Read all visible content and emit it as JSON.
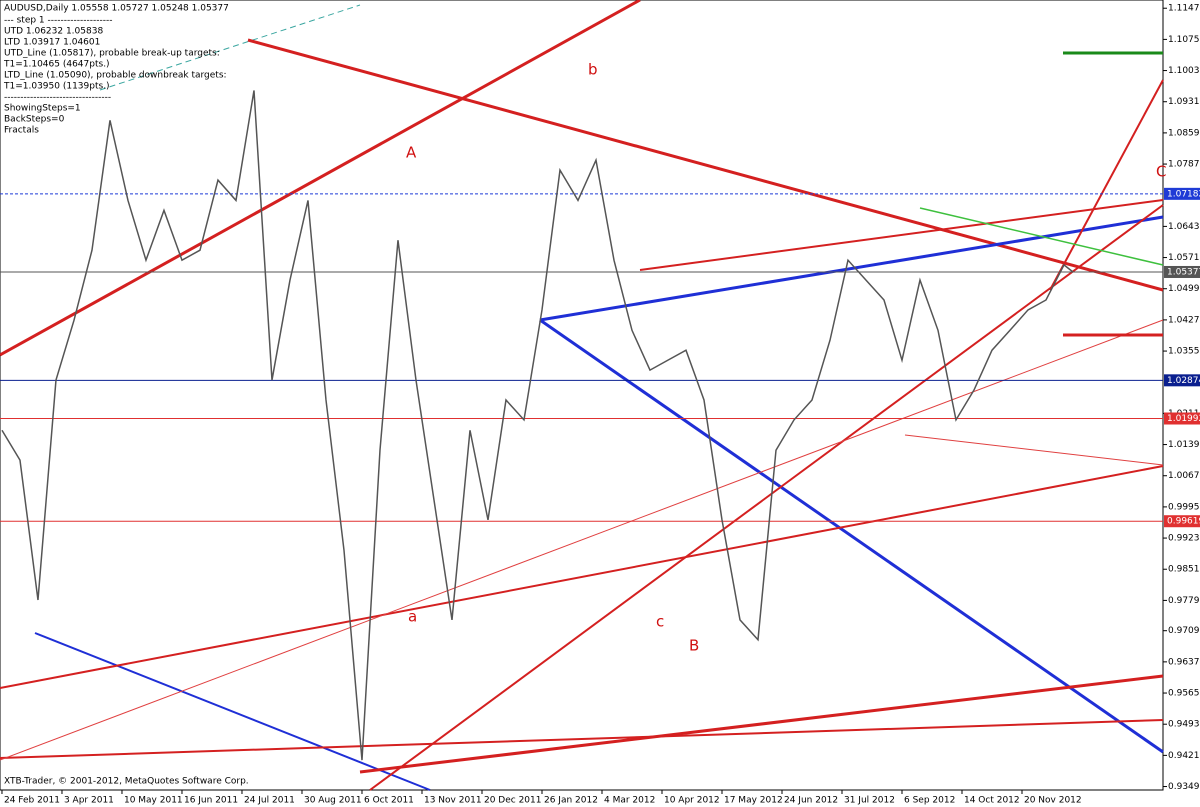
{
  "chart_data": {
    "type": "line",
    "title": "AUDUSD,Daily  1.05558 1.05727 1.05248 1.05377",
    "info_lines": [
      "---   step 1   --------------------",
      "UTD 1.06232  1.05838",
      "LTD  1.03917  1.04601",
      "UTD_Line (1.05817), probable break-up targets:",
      "T1=1.10465 (4647pts.)",
      "LTD_Line (1.05090), probable downbreak targets:",
      "T1=1.03950 (1139pts.)",
      "---------------------------------",
      "ShowingSteps=1",
      "BackSteps=0",
      "Fractals"
    ],
    "annotations": [
      "b",
      "A",
      "C",
      "a",
      "c",
      "B"
    ],
    "footer": "XTB-Trader, © 2001-2012, MetaQuotes Software Corp.",
    "x": [
      0,
      3,
      6,
      9,
      12,
      15,
      18,
      21,
      24,
      27,
      30,
      33,
      36,
      39,
      42,
      45,
      48,
      51,
      54,
      57,
      60,
      63,
      66,
      69,
      72,
      75,
      78,
      81,
      84,
      87,
      90,
      93,
      96,
      99,
      102,
      105,
      108,
      111,
      114,
      117,
      120,
      123,
      126,
      129,
      132,
      135,
      138,
      141,
      144,
      147,
      150,
      153,
      156,
      159,
      162,
      165,
      168,
      171,
      174,
      177,
      178.5
    ],
    "series": [
      {
        "name": "AUDUSD",
        "color": "#555555",
        "values": [
          1.0172,
          1.0103,
          0.978,
          1.0288,
          1.0426,
          1.0588,
          1.0888,
          1.0703,
          1.0565,
          1.068,
          1.0565,
          1.0588,
          1.075,
          1.0703,
          1.0957,
          1.0288,
          1.0519,
          1.0703,
          1.0242,
          0.9895,
          0.941,
          1.0126,
          1.0611,
          1.0288,
          1.0011,
          0.9734,
          1.0172,
          0.9965,
          1.0242,
          1.0196,
          1.045,
          1.0773,
          1.0703,
          1.0796,
          1.0565,
          1.0403,
          1.0311,
          1.0334,
          1.0357,
          1.0242,
          0.9965,
          0.9734,
          0.9688,
          1.0126,
          1.0196,
          1.0242,
          1.038,
          1.0565,
          1.0519,
          1.0473,
          1.0334,
          1.0519,
          1.0403,
          1.0196,
          1.0265,
          1.0357,
          1.0403,
          1.045,
          1.0473,
          1.0554,
          1.05377
        ]
      }
    ],
    "xlim": [
      -0.33,
      193.5
    ],
    "xticks": [
      {
        "value": 0,
        "label": "24 Feb 2011"
      },
      {
        "value": 10,
        "label": "3 Apr 2011"
      },
      {
        "value": 20,
        "label": "10 May 2011"
      },
      {
        "value": 30,
        "label": "16 Jun 2011"
      },
      {
        "value": 40,
        "label": "24 Jul 2011"
      },
      {
        "value": 50,
        "label": "30 Aug 2011"
      },
      {
        "value": 60,
        "label": "6 Oct 2011"
      },
      {
        "value": 70,
        "label": "13 Nov 2011"
      },
      {
        "value": 80,
        "label": "20 Dec 2011"
      },
      {
        "value": 90,
        "label": "26 Jan 2012"
      },
      {
        "value": 100,
        "label": "4 Mar 2012"
      },
      {
        "value": 110,
        "label": "10 Apr 2012"
      },
      {
        "value": 120,
        "label": "17 May 2012"
      },
      {
        "value": 130,
        "label": "24 Jun 2012"
      },
      {
        "value": 140,
        "label": "31 Jul 2012"
      },
      {
        "value": 150,
        "label": "6 Sep 2012"
      },
      {
        "value": 160,
        "label": "14 Oct 2012"
      },
      {
        "value": 170,
        "label": "20 Nov 2012"
      }
    ],
    "ylim": [
      0.9341,
      1.1166
    ],
    "yticks": [
      {
        "value": 1.1147,
        "label": "1.11470"
      },
      {
        "value": 1.1075,
        "label": "1.10750"
      },
      {
        "value": 1.1003,
        "label": "1.10030"
      },
      {
        "value": 1.0931,
        "label": "1.09310"
      },
      {
        "value": 1.0859,
        "label": "1.08590"
      },
      {
        "value": 1.0787,
        "label": "1.07870"
      },
      {
        "value": 1.0643,
        "label": "1.06430"
      },
      {
        "value": 1.0571,
        "label": "1.05710"
      },
      {
        "value": 1.0499,
        "label": "1.04990"
      },
      {
        "value": 1.0427,
        "label": "1.04270"
      },
      {
        "value": 1.0355,
        "label": "1.03550"
      },
      {
        "value": 1.0211,
        "label": "1.02110"
      },
      {
        "value": 1.0139,
        "label": "1.01390"
      },
      {
        "value": 1.0067,
        "label": "1.00670"
      },
      {
        "value": 0.9995,
        "label": "0.99950"
      },
      {
        "value": 0.9923,
        "label": "0.99230"
      },
      {
        "value": 0.9851,
        "label": "0.98510"
      },
      {
        "value": 0.9779,
        "label": "0.97790"
      },
      {
        "value": 0.9709,
        "label": "0.97090"
      },
      {
        "value": 0.9637,
        "label": "0.96370"
      },
      {
        "value": 0.9565,
        "label": "0.95650"
      },
      {
        "value": 0.9493,
        "label": "0.94930"
      },
      {
        "value": 0.9421,
        "label": "0.94210"
      },
      {
        "value": 0.9349,
        "label": "0.93490"
      }
    ],
    "levels": [
      {
        "value": 1.07182,
        "color": "#1f3bd6"
      },
      {
        "value": 1.05377,
        "color": "#555555"
      },
      {
        "value": 1.02874,
        "color": "#0a1f8f"
      },
      {
        "value": 1.01992,
        "color": "#e03030"
      },
      {
        "value": 0.99619,
        "color": "#e03030"
      }
    ]
  }
}
